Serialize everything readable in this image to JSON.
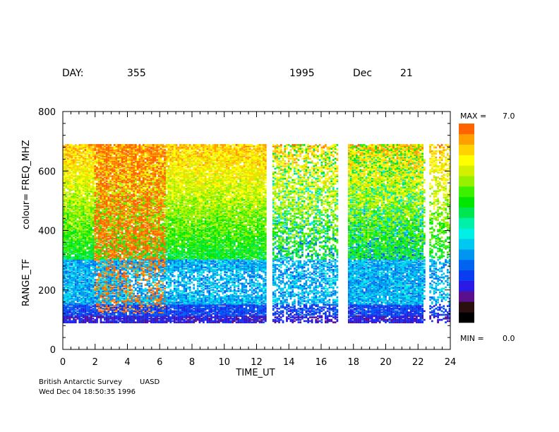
{
  "header": {
    "day_label": "DAY:",
    "day_value": "355",
    "year": "1995",
    "month": "Dec",
    "day_of_month": "21"
  },
  "footer": {
    "org": "British Antarctic Survey",
    "dept": "UASD",
    "timestamp": "Wed Dec 04 18:50:35 1996"
  },
  "colorbar": {
    "max_label": "MAX =",
    "max_value": "7.0",
    "min_label": "MIN =",
    "min_value": "0.0",
    "colors": [
      "#000000",
      "#2a0f0f",
      "#5a0f8c",
      "#2a1ae6",
      "#0a3cf0",
      "#0064f0",
      "#0096f0",
      "#00c8f0",
      "#00f0e6",
      "#00f0aa",
      "#00e650",
      "#00e600",
      "#3cf000",
      "#96f000",
      "#d2f000",
      "#ffff00",
      "#ffd200",
      "#ffa000",
      "#ff6400"
    ]
  },
  "chart_data": {
    "type": "heatmap",
    "xlabel": "TIME_UT",
    "ylabel": "RANGE_TF",
    "ylabel_prefix": "colour= FREQ_MHZ",
    "xlim": [
      0,
      24
    ],
    "ylim": [
      0,
      800
    ],
    "xticks": [
      0,
      2,
      4,
      6,
      8,
      10,
      12,
      14,
      16,
      18,
      20,
      22,
      24
    ],
    "yticks": [
      0,
      200,
      400,
      600,
      800
    ],
    "range_extent": [
      90,
      690
    ],
    "data_gaps_ut": [
      [
        12.5,
        12.95
      ],
      [
        17.0,
        17.55
      ],
      [
        22.35,
        22.6
      ]
    ],
    "colour_range": [
      0.0,
      7.0
    ],
    "note": ""
  }
}
